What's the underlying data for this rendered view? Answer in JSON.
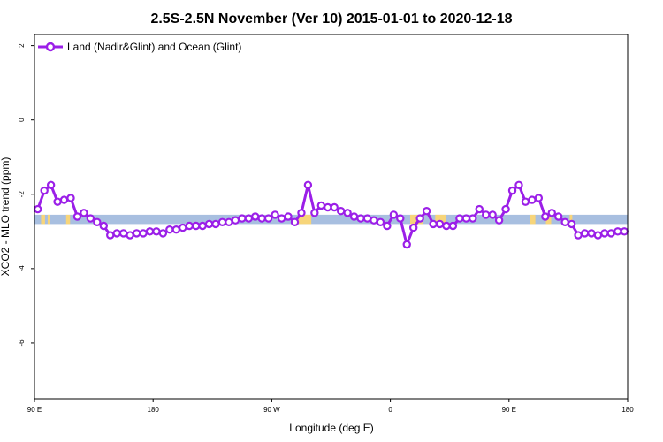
{
  "chart_data": {
    "type": "line",
    "title": "2.5S-2.5N November (Ver 10)   2015-01-01 to 2020-12-18",
    "xlabel": "Longitude (deg E)",
    "ylabel": "XCO2 - MLO trend (ppm)",
    "xlim": [
      90,
      540
    ],
    "ylim": [
      -7.5,
      2.3
    ],
    "xticks": [
      {
        "value": 90,
        "label": "90 E"
      },
      {
        "value": 180,
        "label": "180"
      },
      {
        "value": 270,
        "label": "90 W"
      },
      {
        "value": 360,
        "label": "0"
      },
      {
        "value": 450,
        "label": "90 E"
      },
      {
        "value": 540,
        "label": "180"
      }
    ],
    "yticks": [
      {
        "value": 2,
        "label": "2"
      },
      {
        "value": 0,
        "label": "0"
      },
      {
        "value": -2,
        "label": "-2"
      },
      {
        "value": -4,
        "label": "-4"
      },
      {
        "value": -6,
        "label": "-6"
      }
    ],
    "grid": false,
    "legend_position": "top-left",
    "band": {
      "y_top": -2.55,
      "y_bottom": -2.8,
      "ocean_color": "#a8bfe0",
      "land_color": "#f7d57a"
    },
    "land_ranges": [
      [
        95,
        98
      ],
      [
        100,
        102
      ],
      [
        114,
        117
      ],
      [
        290,
        300
      ],
      [
        375,
        385
      ],
      [
        394,
        402
      ],
      [
        466,
        470
      ],
      [
        478,
        482
      ],
      [
        496,
        498
      ]
    ],
    "series": [
      {
        "name": "Land (Nadir&Glint) and Ocean (Glint)",
        "color": "#9b1fe8",
        "x": [
          92.5,
          97.5,
          102.5,
          107.5,
          112.5,
          117.5,
          122.5,
          127.5,
          132.5,
          137.5,
          142.5,
          147.5,
          152.5,
          157.5,
          162.5,
          167.5,
          172.5,
          177.5,
          182.5,
          187.5,
          192.5,
          197.5,
          202.5,
          207.5,
          212.5,
          217.5,
          222.5,
          227.5,
          232.5,
          237.5,
          242.5,
          247.5,
          252.5,
          257.5,
          262.5,
          267.5,
          272.5,
          277.5,
          282.5,
          287.5,
          292.5,
          297.5,
          302.5,
          307.5,
          312.5,
          317.5,
          322.5,
          327.5,
          332.5,
          337.5,
          342.5,
          347.5,
          352.5,
          357.5,
          362.5,
          367.5,
          372.5,
          377.5,
          382.5,
          387.5,
          392.5,
          397.5,
          402.5,
          407.5,
          412.5,
          417.5,
          422.5,
          427.5,
          432.5,
          437.5,
          442.5,
          447.5,
          452.5,
          457.5,
          462.5,
          467.5,
          472.5,
          477.5,
          482.5,
          487.5,
          492.5,
          497.5,
          502.5,
          507.5,
          512.5,
          517.5,
          522.5,
          527.5,
          532.5,
          537.5
        ],
        "values": [
          -2.4,
          -1.9,
          -1.75,
          -2.2,
          -2.15,
          -2.1,
          -2.6,
          -2.5,
          -2.65,
          -2.75,
          -2.85,
          -3.1,
          -3.05,
          -3.05,
          -3.1,
          -3.05,
          -3.05,
          -3.0,
          -3.0,
          -3.05,
          -2.95,
          -2.95,
          -2.9,
          -2.85,
          -2.85,
          -2.85,
          -2.8,
          -2.8,
          -2.75,
          -2.75,
          -2.7,
          -2.65,
          -2.65,
          -2.6,
          -2.65,
          -2.65,
          -2.55,
          -2.65,
          -2.6,
          -2.75,
          -2.5,
          -1.75,
          -2.5,
          -2.3,
          -2.35,
          -2.35,
          -2.45,
          -2.5,
          -2.6,
          -2.65,
          -2.65,
          -2.7,
          -2.75,
          -2.85,
          -2.55,
          -2.65,
          -3.35,
          -2.9,
          -2.65,
          -2.45,
          -2.8,
          -2.8,
          -2.85,
          -2.85,
          -2.65,
          -2.65,
          -2.65,
          -2.4,
          -2.55,
          -2.55,
          -2.7,
          -2.4,
          -1.9,
          -1.75,
          -2.2,
          -2.15,
          -2.1,
          -2.6,
          -2.5,
          -2.6,
          -2.75,
          -2.8,
          -3.1,
          -3.05,
          -3.05,
          -3.1,
          -3.05,
          -3.05,
          -3.0,
          -3.0
        ]
      }
    ]
  }
}
